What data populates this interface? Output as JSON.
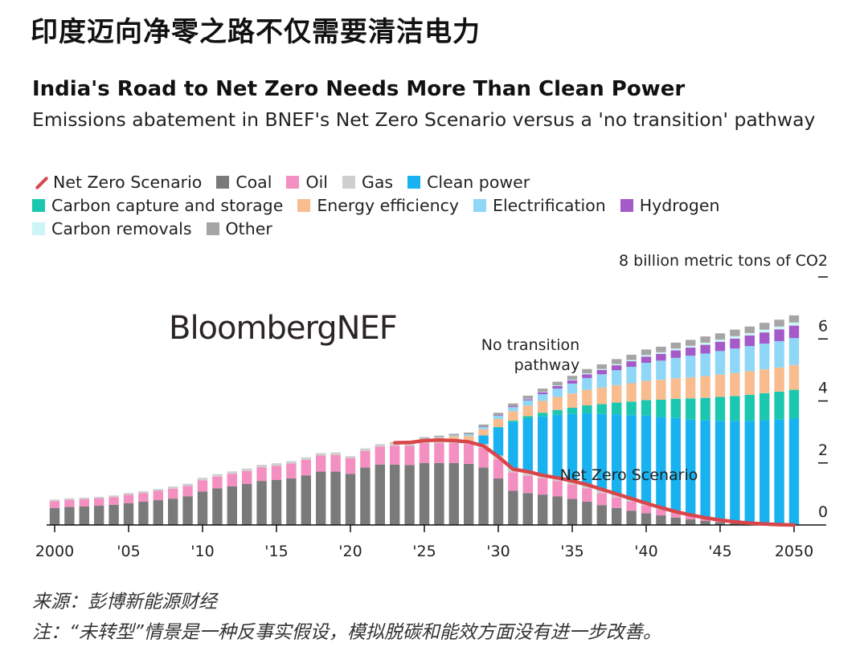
{
  "header": {
    "cn_title": "印度迈向净零之路不仅需要清洁电力",
    "title": "India's Road to Net Zero Needs More Than Clean Power",
    "subtitle": "Emissions abatement in BNEF's Net Zero Scenario versus a 'no transition' pathway"
  },
  "footer": {
    "source": "来源：彭博新能源财经",
    "note": "注：“未转型”情景是一种反事实假设，模拟脱碳和能效方面没有进一步改善。"
  },
  "chart_data": {
    "type": "bar",
    "stacked": true,
    "unit_label": "8 billion metric tons of CO2",
    "ylim": [
      0,
      8
    ],
    "y_ticks": [
      {
        "value": 0,
        "label": "0"
      },
      {
        "value": 2,
        "label": "2"
      },
      {
        "value": 4,
        "label": "4"
      },
      {
        "value": 6,
        "label": "6"
      },
      {
        "value": 8,
        "label": ""
      }
    ],
    "x_ticks": [
      {
        "year": 2000,
        "label": "2000"
      },
      {
        "year": 2005,
        "label": "'05"
      },
      {
        "year": 2010,
        "label": "'10"
      },
      {
        "year": 2015,
        "label": "'15"
      },
      {
        "year": 2020,
        "label": "'20"
      },
      {
        "year": 2025,
        "label": "'25"
      },
      {
        "year": 2030,
        "label": "'30"
      },
      {
        "year": 2035,
        "label": "'35"
      },
      {
        "year": 2040,
        "label": "'40"
      },
      {
        "year": 2045,
        "label": "'45"
      },
      {
        "year": 2050,
        "label": "2050"
      }
    ],
    "legend": [
      {
        "name": "Net Zero Scenario",
        "color": "#d9464a",
        "kind": "line"
      },
      {
        "name": "Coal",
        "color": "#7a7a7a",
        "kind": "box"
      },
      {
        "name": "Oil",
        "color": "#f38fc1",
        "kind": "box"
      },
      {
        "name": "Gas",
        "color": "#cfcfcf",
        "kind": "box"
      },
      {
        "name": "Clean power",
        "color": "#19b2f0",
        "kind": "box"
      },
      {
        "name": "Carbon capture and storage",
        "color": "#1cc7b0",
        "kind": "box"
      },
      {
        "name": "Energy efficiency",
        "color": "#f9bc8e",
        "kind": "box"
      },
      {
        "name": "Electrification",
        "color": "#8fd7f6",
        "kind": "box"
      },
      {
        "name": "Hydrogen",
        "color": "#a45ac9",
        "kind": "box"
      },
      {
        "name": "Carbon removals",
        "color": "#cdf4f6",
        "kind": "box"
      },
      {
        "name": "Other",
        "color": "#a5a5a5",
        "kind": "box"
      }
    ],
    "legend_rows": [
      [
        0,
        1,
        2,
        3,
        4
      ],
      [
        5,
        6,
        7,
        8
      ],
      [
        9,
        10
      ]
    ],
    "annotations": [
      {
        "text_lines": [
          "No transition",
          "pathway"
        ],
        "x": 2035.5,
        "y": 5.65
      },
      {
        "text_lines": [
          "Net Zero Scenario"
        ],
        "x": 2043.5,
        "y": 1.45
      }
    ],
    "watermark": "BloombergNEF",
    "years": [
      2000,
      2001,
      2002,
      2003,
      2004,
      2005,
      2006,
      2007,
      2008,
      2009,
      2010,
      2011,
      2012,
      2013,
      2014,
      2015,
      2016,
      2017,
      2018,
      2019,
      2020,
      2021,
      2022,
      2023,
      2024,
      2025,
      2026,
      2027,
      2028,
      2029,
      2030,
      2031,
      2032,
      2033,
      2034,
      2035,
      2036,
      2037,
      2038,
      2039,
      2040,
      2041,
      2042,
      2043,
      2044,
      2045,
      2046,
      2047,
      2048,
      2049,
      2050
    ],
    "series": [
      {
        "name": "Coal",
        "color": "#7a7a7a",
        "values": [
          0.55,
          0.58,
          0.6,
          0.62,
          0.65,
          0.7,
          0.75,
          0.8,
          0.85,
          0.92,
          1.08,
          1.18,
          1.25,
          1.32,
          1.42,
          1.45,
          1.5,
          1.6,
          1.72,
          1.72,
          1.65,
          1.85,
          1.95,
          1.95,
          1.93,
          2.0,
          2.0,
          2.0,
          1.97,
          1.85,
          1.5,
          1.1,
          1.03,
          0.98,
          0.92,
          0.84,
          0.75,
          0.64,
          0.55,
          0.46,
          0.38,
          0.31,
          0.24,
          0.18,
          0.13,
          0.09,
          0.06,
          0.04,
          0.02,
          0.01,
          0.0
        ]
      },
      {
        "name": "Oil",
        "color": "#f38fc1",
        "values": [
          0.22,
          0.23,
          0.23,
          0.24,
          0.25,
          0.27,
          0.28,
          0.3,
          0.32,
          0.34,
          0.36,
          0.38,
          0.4,
          0.42,
          0.44,
          0.46,
          0.48,
          0.5,
          0.52,
          0.54,
          0.5,
          0.54,
          0.58,
          0.6,
          0.62,
          0.64,
          0.64,
          0.64,
          0.64,
          0.64,
          0.62,
          0.6,
          0.56,
          0.53,
          0.5,
          0.47,
          0.43,
          0.39,
          0.34,
          0.29,
          0.25,
          0.2,
          0.17,
          0.13,
          0.1,
          0.08,
          0.06,
          0.04,
          0.03,
          0.02,
          0.01
        ]
      },
      {
        "name": "Gas",
        "color": "#cfcfcf",
        "values": [
          0.05,
          0.05,
          0.05,
          0.05,
          0.05,
          0.06,
          0.06,
          0.06,
          0.07,
          0.07,
          0.08,
          0.08,
          0.08,
          0.08,
          0.08,
          0.08,
          0.08,
          0.08,
          0.08,
          0.08,
          0.07,
          0.08,
          0.08,
          0.08,
          0.09,
          0.09,
          0.1,
          0.11,
          0.11,
          0.12,
          0.12,
          0.12,
          0.12,
          0.11,
          0.11,
          0.1,
          0.1,
          0.09,
          0.08,
          0.07,
          0.06,
          0.05,
          0.04,
          0.03,
          0.02,
          0.02,
          0.01,
          0.01,
          0.01,
          0.0,
          0.0
        ]
      },
      {
        "name": "Clean power",
        "color": "#19b2f0",
        "values": [
          0,
          0,
          0,
          0,
          0,
          0,
          0,
          0,
          0,
          0,
          0,
          0,
          0,
          0,
          0,
          0,
          0,
          0,
          0,
          0,
          0,
          0,
          0,
          0,
          0,
          0,
          0,
          0,
          0,
          0.28,
          0.9,
          1.5,
          1.72,
          1.88,
          2.02,
          2.17,
          2.32,
          2.46,
          2.6,
          2.72,
          2.84,
          2.92,
          3.0,
          3.06,
          3.12,
          3.17,
          3.22,
          3.27,
          3.32,
          3.37,
          3.42
        ]
      },
      {
        "name": "Carbon capture and storage",
        "color": "#1cc7b0",
        "values": [
          0,
          0,
          0,
          0,
          0,
          0,
          0,
          0,
          0,
          0,
          0,
          0,
          0,
          0,
          0,
          0,
          0,
          0,
          0,
          0,
          0,
          0,
          0,
          0,
          0,
          0,
          0,
          0,
          0,
          0,
          0.02,
          0.05,
          0.08,
          0.12,
          0.16,
          0.2,
          0.26,
          0.32,
          0.38,
          0.44,
          0.5,
          0.56,
          0.62,
          0.68,
          0.73,
          0.77,
          0.81,
          0.84,
          0.87,
          0.9,
          0.93
        ]
      },
      {
        "name": "Energy efficiency",
        "color": "#f9bc8e",
        "values": [
          0,
          0,
          0,
          0,
          0,
          0,
          0,
          0,
          0,
          0,
          0,
          0,
          0,
          0,
          0,
          0,
          0,
          0,
          0,
          0,
          0,
          0,
          0,
          0.02,
          0.04,
          0.06,
          0.08,
          0.11,
          0.15,
          0.2,
          0.26,
          0.3,
          0.34,
          0.38,
          0.42,
          0.46,
          0.5,
          0.53,
          0.56,
          0.59,
          0.62,
          0.64,
          0.66,
          0.68,
          0.7,
          0.72,
          0.74,
          0.76,
          0.77,
          0.78,
          0.8
        ]
      },
      {
        "name": "Electrification",
        "color": "#8fd7f6",
        "values": [
          0,
          0,
          0,
          0,
          0,
          0,
          0,
          0,
          0,
          0,
          0,
          0,
          0,
          0,
          0,
          0,
          0,
          0,
          0,
          0,
          0,
          0,
          0,
          0,
          0,
          0.01,
          0.02,
          0.03,
          0.05,
          0.07,
          0.1,
          0.13,
          0.17,
          0.22,
          0.27,
          0.32,
          0.38,
          0.43,
          0.48,
          0.53,
          0.58,
          0.62,
          0.66,
          0.7,
          0.73,
          0.76,
          0.79,
          0.81,
          0.83,
          0.85,
          0.87
        ]
      },
      {
        "name": "Hydrogen",
        "color": "#a45ac9",
        "values": [
          0,
          0,
          0,
          0,
          0,
          0,
          0,
          0,
          0,
          0,
          0,
          0,
          0,
          0,
          0,
          0,
          0,
          0,
          0,
          0,
          0,
          0,
          0,
          0,
          0,
          0,
          0,
          0,
          0,
          0.01,
          0.02,
          0.03,
          0.04,
          0.06,
          0.08,
          0.1,
          0.12,
          0.14,
          0.16,
          0.18,
          0.2,
          0.22,
          0.24,
          0.26,
          0.28,
          0.3,
          0.32,
          0.34,
          0.36,
          0.38,
          0.4
        ]
      },
      {
        "name": "Carbon removals",
        "color": "#cdf4f6",
        "values": [
          0,
          0,
          0,
          0,
          0,
          0,
          0,
          0,
          0,
          0,
          0,
          0,
          0,
          0,
          0,
          0,
          0,
          0,
          0,
          0,
          0,
          0,
          0,
          0,
          0,
          0,
          0,
          0,
          0,
          0,
          0,
          0,
          0.01,
          0.01,
          0.02,
          0.02,
          0.03,
          0.03,
          0.04,
          0.04,
          0.05,
          0.05,
          0.06,
          0.06,
          0.07,
          0.07,
          0.08,
          0.08,
          0.09,
          0.09,
          0.1
        ]
      },
      {
        "name": "Other",
        "color": "#a5a5a5",
        "values": [
          0,
          0,
          0,
          0,
          0,
          0,
          0,
          0,
          0,
          0,
          0,
          0,
          0,
          0,
          0,
          0,
          0,
          0,
          0,
          0,
          0,
          0,
          0,
          0.02,
          0.02,
          0.03,
          0.04,
          0.05,
          0.06,
          0.07,
          0.08,
          0.09,
          0.1,
          0.11,
          0.12,
          0.13,
          0.14,
          0.15,
          0.16,
          0.17,
          0.18,
          0.18,
          0.19,
          0.19,
          0.2,
          0.2,
          0.21,
          0.21,
          0.22,
          0.22,
          0.23
        ]
      }
    ],
    "net_zero_line": {
      "name": "Net Zero Scenario",
      "color": "#d9464a",
      "years": [
        2023,
        2024,
        2025,
        2026,
        2027,
        2028,
        2029,
        2030,
        2031,
        2032,
        2033,
        2034,
        2035,
        2036,
        2037,
        2038,
        2039,
        2040,
        2041,
        2042,
        2043,
        2044,
        2045,
        2046,
        2047,
        2048,
        2049,
        2050
      ],
      "values": [
        2.65,
        2.66,
        2.72,
        2.74,
        2.72,
        2.68,
        2.55,
        2.2,
        1.8,
        1.72,
        1.6,
        1.52,
        1.42,
        1.3,
        1.15,
        1.0,
        0.85,
        0.7,
        0.56,
        0.43,
        0.32,
        0.23,
        0.16,
        0.1,
        0.06,
        0.03,
        0.01,
        0.0
      ]
    }
  }
}
